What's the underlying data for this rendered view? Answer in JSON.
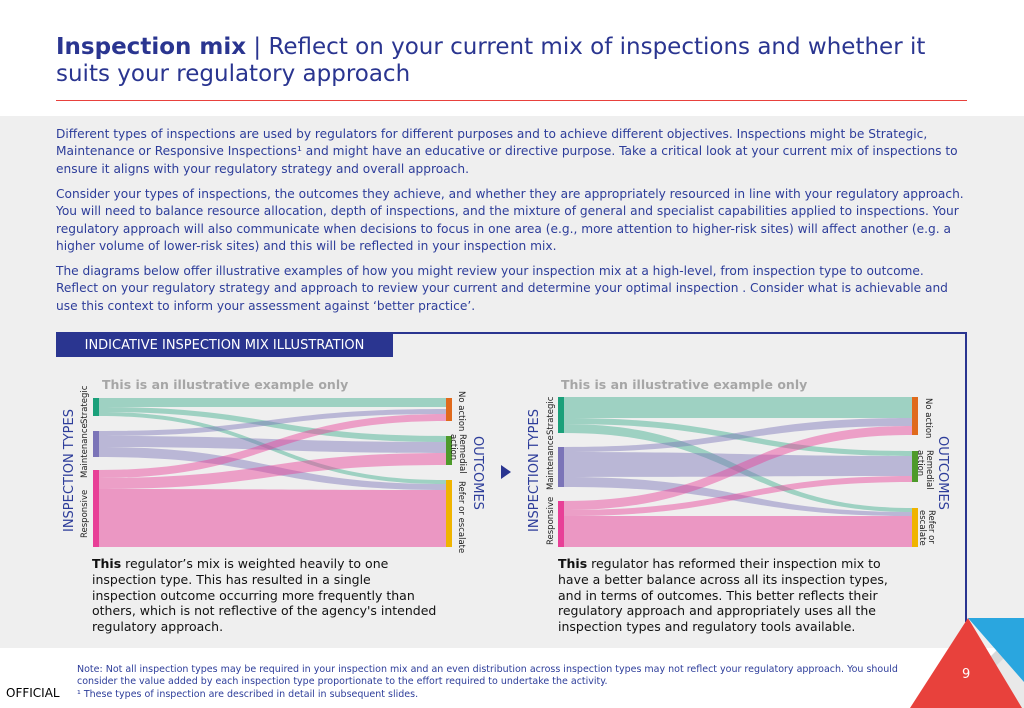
{
  "header": {
    "title_bold": "Inspection mix",
    "title_rest": " | Reflect on your current mix of inspections and whether it suits your regulatory approach"
  },
  "intro": {
    "p1": "Different types of inspections are used by regulators for different purposes and to achieve different objectives. Inspections might be Strategic, Maintenance or Responsive Inspections¹ and might have an educative or directive purpose. Take a critical look at your current mix of inspections to ensure it aligns with your regulatory strategy and overall approach.",
    "p2": "Consider your types of inspections, the outcomes they achieve, and whether they are appropriately resourced in line with your regulatory approach. You will need to balance resource allocation, depth of inspections, and the mixture of general and specialist capabilities applied to inspections. Your regulatory approach will also communicate when decisions to focus in one area (e.g., more attention to higher-risk sites) will affect another (e.g. a higher volume of lower-risk sites) and this will be reflected in your inspection mix.",
    "p3": "The diagrams below offer illustrative examples of how you might review your inspection mix at a high-level, from inspection type to outcome. Reflect on your regulatory strategy and approach to review your current and determine your optimal inspection . Consider what is achievable and use this context to inform your assessment against ‘better practice’."
  },
  "illustration": {
    "tag": "INDICATIVE INSPECTION MIX ILLUSTRATION",
    "note": "This is an illustrative example only",
    "types_axis": "INSPECTION TYPES",
    "outcomes_axis": "OUTCOMES",
    "types": [
      "Strategic",
      "Maintenance",
      "Responsive"
    ],
    "outcomes_left": [
      "No action",
      "Remedial action",
      "Refer or escalate"
    ],
    "outcomes_right": [
      "No action",
      "Remedial action",
      "Refer or escalate"
    ],
    "colors": {
      "strategic": "#1aa07a",
      "maintenance": "#7b74b8",
      "responsive": "#e83f97",
      "no_action": "#e06a1c",
      "remedial": "#4e9a2a",
      "refer": "#f0b400"
    },
    "left_caption_bold": "This",
    "left_caption_rest": " regulator’s mix is weighted heavily to one inspection type. This has resulted in a single inspection outcome occurring more frequently than others, which is not reflective of the agency's intended regulatory approach.",
    "right_caption_bold": "This",
    "right_caption_rest": " regulator has reformed their inspection mix to have a better balance across all its inspection types, and in terms of outcomes. This better reflects their regulatory approach and appropriately uses all the inspection types and regulatory tools available."
  },
  "footer": {
    "note_line1": "Note: Not all inspection types may be required in your inspection mix and an even distribution across inspection types may not reflect your regulatory approach. You should consider the value added by each inspection type proportionate to the effort required to undertake the activity.",
    "note_line2": "¹ These types of inspection are described in detail in subsequent slides.",
    "classification": "OFFICIAL",
    "page_number": "9"
  }
}
